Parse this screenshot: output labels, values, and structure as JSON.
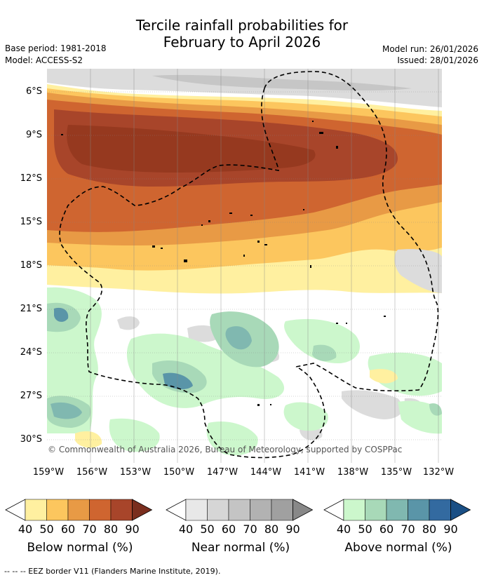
{
  "title_line1": "Tercile rainfall probabilities for",
  "title_line2": "February to April 2026",
  "meta_left": {
    "base_period": "Base period: 1981-2018",
    "model": "Model: ACCESS-S2"
  },
  "meta_right": {
    "model_run": "Model run: 26/01/2026",
    "issued": "Issued: 28/01/2026"
  },
  "map": {
    "lat_labels": [
      "6°S",
      "9°S",
      "12°S",
      "15°S",
      "18°S",
      "21°S",
      "24°S",
      "27°S",
      "30°S"
    ],
    "lon_labels": [
      "159°W",
      "156°W",
      "153°W",
      "150°W",
      "147°W",
      "144°W",
      "141°W",
      "138°W",
      "135°W",
      "132°W"
    ],
    "copyright": "© Commonwealth of Australia 2026, Bureau of Meteorology, supported by COSPPac"
  },
  "legend": {
    "below": {
      "title": "Below normal (%)",
      "ticks": [
        "40",
        "50",
        "60",
        "70",
        "80",
        "90"
      ],
      "colors": [
        "#fff0a0",
        "#fcc65e",
        "#e89a45",
        "#cf6530",
        "#a8452a",
        "#7a2e1e"
      ]
    },
    "near": {
      "title": "Near normal (%)",
      "ticks": [
        "40",
        "50",
        "60",
        "70",
        "80",
        "90"
      ],
      "colors": [
        "#e8e8e8",
        "#d6d6d6",
        "#c4c4c4",
        "#b2b2b2",
        "#a0a0a0",
        "#888888"
      ]
    },
    "above": {
      "title": "Above normal (%)",
      "ticks": [
        "40",
        "50",
        "60",
        "70",
        "80",
        "90"
      ],
      "colors": [
        "#ccf7cc",
        "#a8d9b8",
        "#80b8b0",
        "#5a95a8",
        "#336aa0",
        "#1a4f85"
      ]
    }
  },
  "footer": "--  --  -- EEZ border V11 (Flanders Marine Institute, 2019)."
}
